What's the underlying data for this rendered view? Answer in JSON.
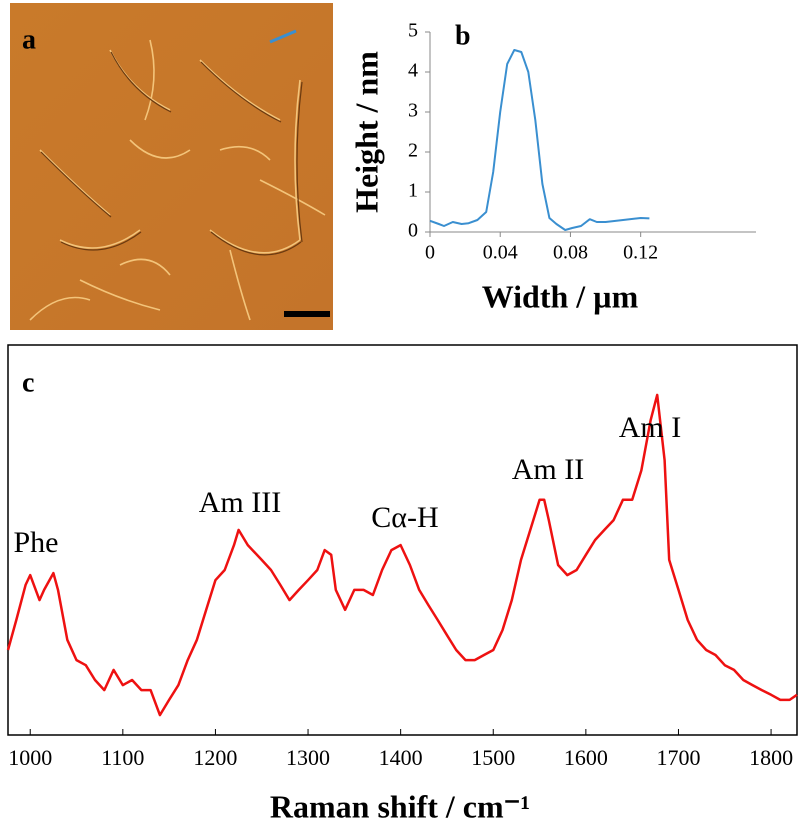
{
  "chart_data": [
    {
      "type": "image",
      "label": "a"
    },
    {
      "type": "line",
      "label": "b",
      "xlabel": "Width / µm",
      "ylabel": "Height / nm",
      "color": "#3a8fd0",
      "x": [
        0,
        0.005,
        0.008,
        0.013,
        0.018,
        0.022,
        0.027,
        0.032,
        0.036,
        0.04,
        0.044,
        0.048,
        0.052,
        0.056,
        0.06,
        0.064,
        0.068,
        0.072,
        0.077,
        0.081,
        0.086,
        0.091,
        0.095,
        0.1,
        0.11,
        0.12,
        0.125
      ],
      "values": [
        0.28,
        0.2,
        0.15,
        0.25,
        0.2,
        0.22,
        0.3,
        0.5,
        1.5,
        3.0,
        4.2,
        4.55,
        4.5,
        4.0,
        2.8,
        1.2,
        0.35,
        0.2,
        0.05,
        0.1,
        0.15,
        0.32,
        0.25,
        0.25,
        0.3,
        0.35,
        0.34
      ],
      "xlim": [
        0,
        0.18
      ],
      "xticks": [
        0,
        0.04,
        0.08,
        0.12
      ],
      "ylim": [
        0,
        5
      ],
      "yticks": [
        0,
        1,
        2,
        3,
        4,
        5
      ]
    },
    {
      "type": "line",
      "label": "c",
      "xlabel": "Raman shift / cm⁻¹",
      "color": "#ee1111",
      "annotations": [
        "Phe",
        "Am III",
        "Cα-H",
        "Am II",
        "Am I"
      ],
      "x": [
        976,
        985,
        995,
        1000,
        1010,
        1015,
        1025,
        1030,
        1040,
        1050,
        1060,
        1070,
        1080,
        1090,
        1100,
        1110,
        1120,
        1130,
        1140,
        1150,
        1160,
        1170,
        1180,
        1190,
        1200,
        1210,
        1220,
        1225,
        1235,
        1250,
        1260,
        1270,
        1280,
        1290,
        1300,
        1310,
        1318,
        1325,
        1330,
        1340,
        1350,
        1360,
        1370,
        1380,
        1390,
        1400,
        1410,
        1420,
        1430,
        1440,
        1450,
        1460,
        1470,
        1480,
        1490,
        1500,
        1510,
        1520,
        1530,
        1540,
        1550,
        1555,
        1560,
        1570,
        1580,
        1590,
        1600,
        1610,
        1620,
        1630,
        1640,
        1650,
        1660,
        1670,
        1677,
        1685,
        1690,
        1700,
        1710,
        1720,
        1730,
        1740,
        1750,
        1760,
        1770,
        1780,
        1790,
        1800,
        1810,
        1820,
        1828
      ],
      "values": [
        21.8,
        29.5,
        38.5,
        41.0,
        34.6,
        37.2,
        41.5,
        37.2,
        24.4,
        19.2,
        17.9,
        14.1,
        11.5,
        16.7,
        12.8,
        14.1,
        11.5,
        11.5,
        5.1,
        9.0,
        12.8,
        19.2,
        24.4,
        32.1,
        39.7,
        42.3,
        48.7,
        52.6,
        48.7,
        44.9,
        42.3,
        38.5,
        34.6,
        37.2,
        39.7,
        42.3,
        47.4,
        46.2,
        37.2,
        32.1,
        37.2,
        37.2,
        35.9,
        42.3,
        47.4,
        48.7,
        43.6,
        37.2,
        33.3,
        29.5,
        25.6,
        21.8,
        19.2,
        19.2,
        20.5,
        21.8,
        26.9,
        34.6,
        44.9,
        52.6,
        60.3,
        60.3,
        55.1,
        43.6,
        41.0,
        42.3,
        46.2,
        50.0,
        52.6,
        55.1,
        60.3,
        60.3,
        67.9,
        80.8,
        87.2,
        70.5,
        44.9,
        37.2,
        29.5,
        24.4,
        21.8,
        20.5,
        17.9,
        16.7,
        14.1,
        12.8,
        11.5,
        10.3,
        9.0,
        9.0,
        10.3
      ],
      "xlim": [
        976,
        1828
      ],
      "xticks": [
        1000,
        1100,
        1200,
        1300,
        1400,
        1500,
        1600,
        1700,
        1800
      ],
      "ylim": [
        0,
        100
      ]
    }
  ]
}
